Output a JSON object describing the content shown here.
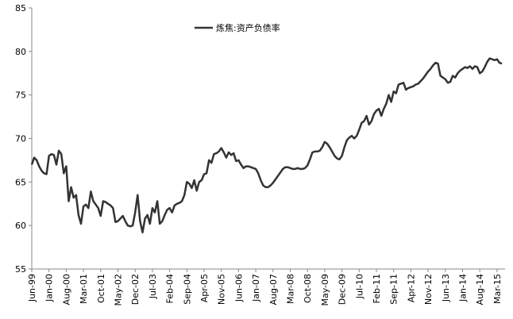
{
  "chart_data": {
    "type": "line",
    "categories": [
      "Jun-99",
      null,
      null,
      null,
      null,
      null,
      null,
      "Jan-00",
      null,
      null,
      null,
      null,
      null,
      null,
      "Aug-00",
      null,
      null,
      null,
      null,
      null,
      null,
      "Mar-01",
      null,
      null,
      null,
      null,
      null,
      null,
      "Oct-01",
      null,
      null,
      null,
      null,
      null,
      null,
      "May-02",
      null,
      null,
      null,
      null,
      null,
      null,
      "Dec-02",
      null,
      null,
      null,
      null,
      null,
      null,
      "Jul-03",
      null,
      null,
      null,
      null,
      null,
      null,
      "Feb-04",
      null,
      null,
      null,
      null,
      null,
      null,
      "Sep-04",
      null,
      null,
      null,
      null,
      null,
      null,
      "Apr-05",
      null,
      null,
      null,
      null,
      null,
      null,
      "Nov-05",
      null,
      null,
      null,
      null,
      null,
      null,
      "Jun-06",
      null,
      null,
      null,
      null,
      null,
      null,
      "Jan-07",
      null,
      null,
      null,
      null,
      null,
      null,
      "Aug-07",
      null,
      null,
      null,
      null,
      null,
      null,
      "Mar-08",
      null,
      null,
      null,
      null,
      null,
      null,
      "Oct-08",
      null,
      null,
      null,
      null,
      null,
      null,
      "May-09",
      null,
      null,
      null,
      null,
      null,
      null,
      "Dec-09",
      null,
      null,
      null,
      null,
      null,
      null,
      "Jul-10",
      null,
      null,
      null,
      null,
      null,
      null,
      "Feb-11",
      null,
      null,
      null,
      null,
      null,
      null,
      "Sep-11",
      null,
      null,
      null,
      null,
      null,
      null,
      "Apr-12",
      null,
      null,
      null,
      null,
      null,
      null,
      "Nov-12",
      null,
      null,
      null,
      null,
      null,
      null,
      "Jun-13",
      null,
      null,
      null,
      null,
      null,
      null,
      "Jan-14",
      null,
      null,
      null,
      null,
      null,
      null,
      "Aug-14",
      null,
      null,
      null,
      null,
      null,
      null,
      "Mar-15",
      null,
      null
    ],
    "series": [
      {
        "name": "炼焦:资产负债率",
        "color": "#333333",
        "values": [
          67.0,
          67.8,
          67.5,
          66.8,
          66.3,
          66.0,
          65.9,
          68.0,
          68.2,
          68.1,
          67.0,
          68.6,
          68.2,
          66.0,
          66.8,
          62.8,
          64.4,
          63.2,
          63.5,
          61.2,
          60.2,
          62.2,
          62.4,
          62.0,
          63.9,
          62.8,
          62.4,
          62.0,
          61.1,
          62.8,
          62.7,
          62.5,
          62.3,
          62.0,
          60.4,
          60.5,
          60.8,
          61.1,
          60.5,
          60.0,
          59.9,
          60.0,
          61.5,
          63.5,
          60.5,
          59.2,
          60.8,
          61.2,
          60.2,
          62.0,
          61.5,
          62.8,
          60.2,
          60.5,
          61.2,
          61.8,
          62.0,
          61.5,
          62.3,
          62.5,
          62.6,
          62.8,
          63.5,
          65.0,
          64.8,
          64.3,
          65.2,
          64.0,
          65.0,
          65.2,
          65.9,
          66.0,
          67.5,
          67.2,
          68.2,
          68.3,
          68.5,
          68.9,
          68.4,
          67.8,
          68.4,
          68.1,
          68.3,
          67.4,
          67.5,
          67.0,
          66.6,
          66.8,
          66.8,
          66.7,
          66.6,
          66.5,
          66.0,
          65.2,
          64.6,
          64.4,
          64.4,
          64.6,
          64.9,
          65.3,
          65.7,
          66.1,
          66.5,
          66.7,
          66.7,
          66.6,
          66.5,
          66.5,
          66.6,
          66.5,
          66.5,
          66.6,
          66.9,
          67.6,
          68.4,
          68.5,
          68.5,
          68.6,
          69.0,
          69.6,
          69.4,
          69.0,
          68.5,
          68.0,
          67.7,
          67.6,
          68.0,
          69.0,
          69.8,
          70.1,
          70.3,
          70.0,
          70.3,
          71.0,
          71.8,
          72.0,
          72.6,
          71.6,
          72.0,
          72.8,
          73.2,
          73.4,
          72.6,
          73.4,
          74.0,
          75.0,
          74.2,
          75.4,
          75.2,
          76.2,
          76.3,
          76.4,
          75.6,
          75.8,
          75.9,
          76.0,
          76.2,
          76.3,
          76.6,
          76.9,
          77.3,
          77.7,
          78.0,
          78.4,
          78.7,
          78.6,
          77.2,
          77.0,
          76.8,
          76.4,
          76.5,
          77.2,
          77.0,
          77.5,
          77.8,
          78.0,
          78.2,
          78.1,
          78.3,
          78.0,
          78.3,
          78.2,
          77.5,
          77.7,
          78.2,
          78.8,
          79.2,
          79.1,
          79.0,
          79.1,
          78.7,
          78.6
        ]
      }
    ],
    "ylim": [
      55,
      85
    ],
    "yticks": [
      55,
      60,
      65,
      70,
      75,
      80,
      85
    ]
  }
}
